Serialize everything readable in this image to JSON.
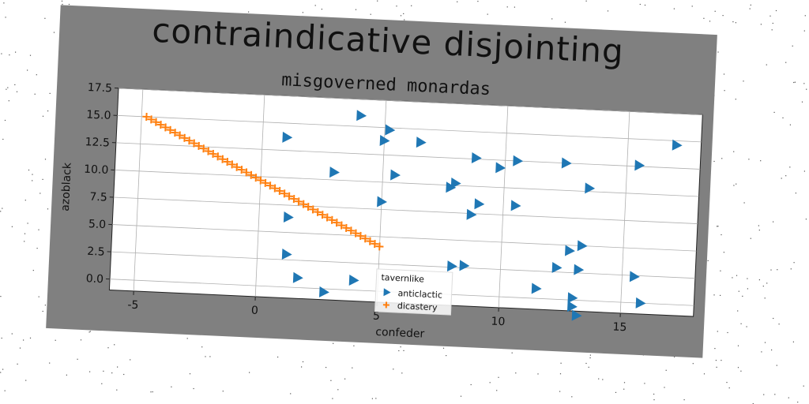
{
  "title": "contraindicative disjointing",
  "subtitle": "misgoverned monardas",
  "colors": {
    "figure_bg": "#808080",
    "plot_bg": "#ffffff",
    "series_anticlactic": "#1f77b4",
    "series_dicastery": "#ff7f0e"
  },
  "chart_data": {
    "type": "scatter",
    "title": "misgoverned monardas",
    "xlabel": "confeder",
    "ylabel": "azoblack",
    "xlim": [
      -6,
      18
    ],
    "ylim": [
      -1,
      17.5
    ],
    "xticks": [
      -5,
      0,
      5,
      10,
      15
    ],
    "yticks": [
      0.0,
      2.5,
      5.0,
      7.5,
      10.0,
      12.5,
      15.0,
      17.5
    ],
    "xtick_labels": [
      "-5",
      "0",
      "5",
      "10",
      "15"
    ],
    "ytick_labels": [
      "0.0",
      "2.5",
      "5.0",
      "7.5",
      "10.0",
      "12.5",
      "15.0",
      "17.5"
    ],
    "grid": true,
    "legend": {
      "title": "tavernlike",
      "position": "lower-center"
    },
    "series": [
      {
        "name": "anticlactic",
        "marker": "triangle-right",
        "points": [
          [
            4.0,
            16.0
          ],
          [
            5.2,
            14.8
          ],
          [
            1.0,
            13.7
          ],
          [
            5.0,
            13.8
          ],
          [
            6.5,
            13.8
          ],
          [
            8.8,
            12.6
          ],
          [
            10.5,
            12.5
          ],
          [
            9.8,
            11.8
          ],
          [
            12.5,
            12.5
          ],
          [
            15.5,
            12.6
          ],
          [
            17.0,
            14.6
          ],
          [
            3.0,
            10.7
          ],
          [
            5.5,
            10.7
          ],
          [
            8.0,
            10.2
          ],
          [
            7.8,
            9.8
          ],
          [
            13.5,
            10.3
          ],
          [
            5.0,
            8.2
          ],
          [
            9.0,
            8.4
          ],
          [
            10.5,
            8.4
          ],
          [
            8.7,
            7.4
          ],
          [
            1.2,
            6.4
          ],
          [
            12.8,
            4.5
          ],
          [
            13.3,
            5.0
          ],
          [
            1.2,
            3.0
          ],
          [
            8.0,
            2.6
          ],
          [
            8.5,
            2.7
          ],
          [
            12.3,
            2.9
          ],
          [
            13.2,
            2.8
          ],
          [
            15.5,
            2.4
          ],
          [
            1.7,
            0.9
          ],
          [
            4.0,
            0.9
          ],
          [
            11.5,
            0.9
          ],
          [
            13.0,
            0.2
          ],
          [
            15.8,
            0.0
          ],
          [
            2.8,
            -0.3
          ],
          [
            13.0,
            -0.6
          ],
          [
            13.2,
            -1.4
          ]
        ]
      },
      {
        "name": "dicastery",
        "marker": "plus",
        "line_from": [
          -4.8,
          15.0
        ],
        "line_to": [
          5.0,
          4.1
        ],
        "count": 50
      }
    ]
  }
}
